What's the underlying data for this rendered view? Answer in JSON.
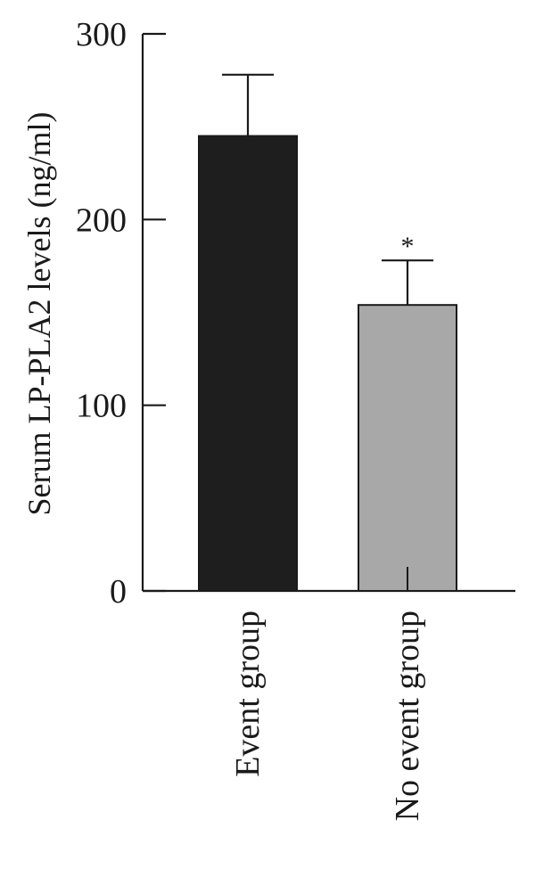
{
  "chart_data": {
    "type": "bar",
    "title": "",
    "xlabel": "",
    "ylabel": "Serum LP-PLA2 levels (ng/ml)",
    "ylim": [
      0,
      300
    ],
    "yticks": [
      0,
      100,
      200,
      300
    ],
    "categories": [
      "Event group",
      "No event group"
    ],
    "series": [
      {
        "values": [
          245,
          154
        ],
        "error_upper": [
          33,
          24
        ]
      }
    ],
    "annotations": [
      "",
      "*"
    ],
    "grid": false,
    "legend": "none"
  },
  "colors": {
    "bars": [
      "#1e1e1e",
      "#a8a8a8"
    ],
    "axis": "#1a1a1a"
  }
}
